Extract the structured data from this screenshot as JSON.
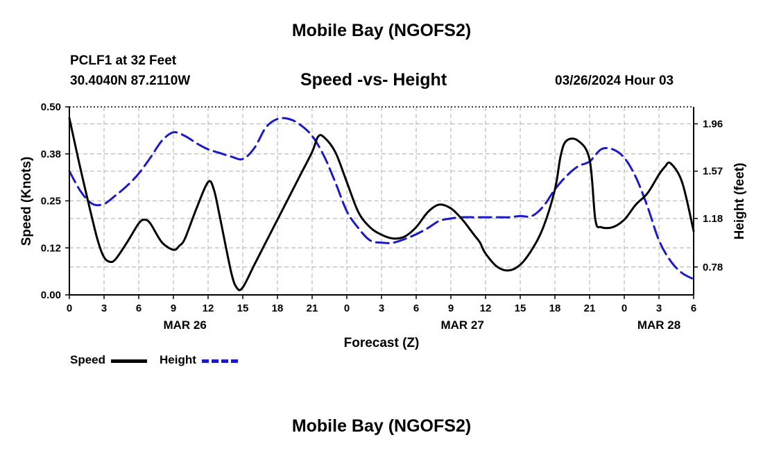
{
  "header": {
    "title": "Mobile Bay (NGOFS2)",
    "station": "PCLF1 at 32 Feet",
    "coords": "30.4040N  87.2110W",
    "subtitle": "Speed -vs- Height",
    "datetime": "03/26/2024 Hour 03"
  },
  "footer": {
    "title": "Mobile Bay (NGOFS2)"
  },
  "legend": {
    "speed_label": "Speed",
    "height_label": "Height"
  },
  "chart_data": {
    "type": "line",
    "xlabel": "Forecast (Z)",
    "ylabel_left": "Speed (Knots)",
    "ylabel_right": "Height (feet)",
    "x_range_hours": [
      0,
      54
    ],
    "x_tick_labels": [
      "0",
      "3",
      "6",
      "9",
      "12",
      "15",
      "18",
      "21",
      "0",
      "3",
      "6",
      "9",
      "12",
      "15",
      "18",
      "21",
      "0",
      "3",
      "6"
    ],
    "date_labels": [
      {
        "hour": 10,
        "text": "MAR 26"
      },
      {
        "hour": 34,
        "text": "MAR 27"
      },
      {
        "hour": 51,
        "text": "MAR 28"
      }
    ],
    "y_left": {
      "range": [
        0,
        0.5
      ],
      "ticks": [
        "0.00",
        "0.12",
        "0.25",
        "0.38",
        "0.50"
      ]
    },
    "y_right": {
      "range": [
        0.55,
        2.1
      ],
      "ticks": [
        "0.78",
        "1.18",
        "1.57",
        "1.96"
      ]
    },
    "grid": true,
    "legend_position": "bottom-left",
    "colors": {
      "speed": "#000000",
      "height": "#1a1acc",
      "grid": "#bbbbbb"
    },
    "series": [
      {
        "name": "Speed",
        "axis": "left",
        "style": "solid",
        "x": [
          0,
          1,
          2,
          2.5,
          3,
          3.5,
          4,
          5,
          6,
          6.5,
          7,
          8,
          9,
          9.5,
          10,
          11,
          12,
          12.5,
          13,
          14,
          14.5,
          15,
          16,
          17,
          18,
          19,
          20,
          21,
          21.5,
          22,
          23,
          24,
          25,
          26,
          27,
          28,
          29,
          30,
          31,
          32,
          33,
          34,
          35,
          35.5,
          36,
          37,
          38,
          39,
          40,
          41,
          42,
          42.5,
          43,
          44,
          45,
          45.5,
          46,
          47,
          48,
          49,
          50,
          51,
          51.5,
          52,
          53,
          54
        ],
        "values": [
          0.47,
          0.33,
          0.2,
          0.14,
          0.1,
          0.088,
          0.095,
          0.14,
          0.19,
          0.2,
          0.19,
          0.14,
          0.12,
          0.13,
          0.15,
          0.23,
          0.3,
          0.28,
          0.21,
          0.06,
          0.018,
          0.02,
          0.08,
          0.14,
          0.2,
          0.26,
          0.32,
          0.38,
          0.42,
          0.42,
          0.38,
          0.3,
          0.22,
          0.18,
          0.16,
          0.15,
          0.155,
          0.18,
          0.22,
          0.24,
          0.23,
          0.2,
          0.16,
          0.14,
          0.11,
          0.075,
          0.065,
          0.08,
          0.12,
          0.18,
          0.28,
          0.37,
          0.41,
          0.41,
          0.36,
          0.2,
          0.18,
          0.18,
          0.2,
          0.24,
          0.27,
          0.32,
          0.34,
          0.35,
          0.3,
          0.17
        ]
      },
      {
        "name": "Height",
        "axis": "right",
        "style": "dashed",
        "x": [
          0,
          1,
          2,
          3,
          4,
          5,
          6,
          7,
          8,
          9,
          10,
          11,
          12,
          13,
          14,
          15,
          16,
          17,
          18,
          19,
          20,
          21,
          22,
          23,
          24,
          25,
          26,
          27,
          28,
          29,
          30,
          31,
          32,
          33,
          34,
          35,
          36,
          37,
          38,
          39,
          40,
          41,
          42,
          43,
          44,
          45,
          46,
          47,
          48,
          49,
          50,
          51,
          52,
          53,
          54
        ],
        "values": [
          1.57,
          1.4,
          1.3,
          1.3,
          1.37,
          1.45,
          1.55,
          1.68,
          1.82,
          1.89,
          1.86,
          1.8,
          1.75,
          1.72,
          1.69,
          1.67,
          1.76,
          1.93,
          2.0,
          2.0,
          1.95,
          1.86,
          1.7,
          1.48,
          1.24,
          1.1,
          1.0,
          0.98,
          0.98,
          1.01,
          1.05,
          1.1,
          1.16,
          1.18,
          1.19,
          1.19,
          1.19,
          1.19,
          1.19,
          1.2,
          1.2,
          1.28,
          1.42,
          1.53,
          1.61,
          1.65,
          1.75,
          1.75,
          1.68,
          1.52,
          1.28,
          1.0,
          0.83,
          0.73,
          0.68
        ]
      }
    ]
  }
}
